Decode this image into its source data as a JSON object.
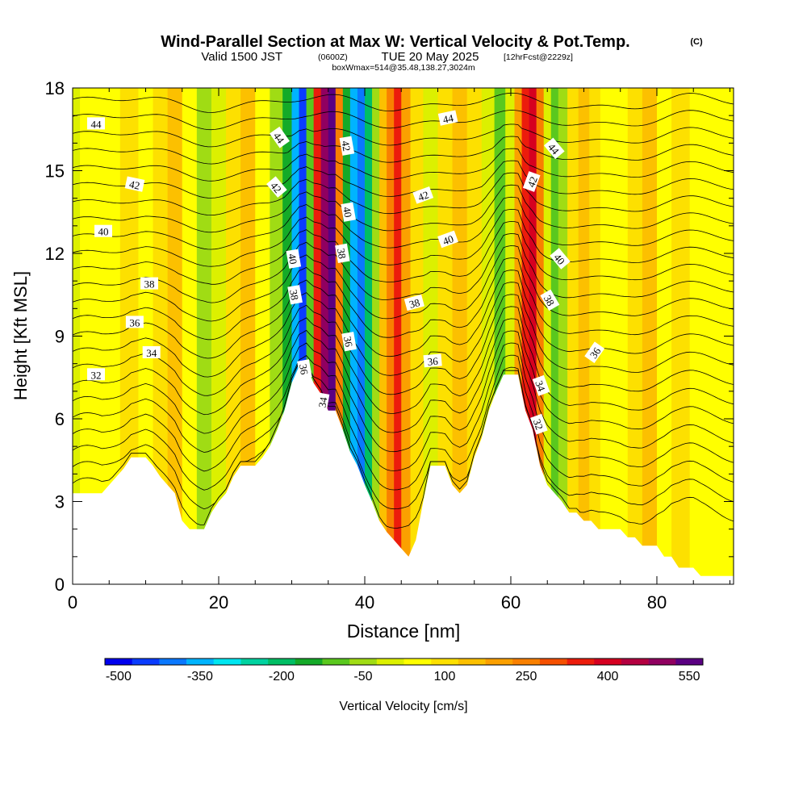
{
  "header": {
    "title": "Wind-Parallel Section at Max W: Vertical Velocity & Pot.Temp.",
    "copyright": "(C)",
    "valid_prefix": "Valid 1500 JST",
    "valid_zulu": "(0600Z)",
    "valid_date": "TUE 20 May 2025",
    "forecast": "[12hrFcst@2229z]",
    "box_info": "boxWmax=514@35.48,138.27,3024m"
  },
  "chart_data": {
    "type": "heatmap",
    "xlabel": "Distance [nm]",
    "ylabel": "Height [Kft MSL]",
    "xlim": [
      0,
      90.5
    ],
    "ylim": [
      0,
      18
    ],
    "x_ticks": [
      0,
      20,
      40,
      60,
      80
    ],
    "y_ticks": [
      0,
      3,
      6,
      9,
      12,
      15,
      18
    ],
    "field": "Vertical Velocity",
    "w_columns": [
      {
        "x": 0,
        "w": -60
      },
      {
        "x": 2,
        "w": 0
      },
      {
        "x": 5,
        "w": 20
      },
      {
        "x": 8,
        "w": 40
      },
      {
        "x": 10,
        "w": -20
      },
      {
        "x": 12,
        "w": 40
      },
      {
        "x": 14,
        "w": 120
      },
      {
        "x": 16,
        "w": 10
      },
      {
        "x": 18,
        "w": -80
      },
      {
        "x": 20,
        "w": -40
      },
      {
        "x": 22,
        "w": 40
      },
      {
        "x": 24,
        "w": 110
      },
      {
        "x": 26,
        "w": 0
      },
      {
        "x": 28,
        "w": -110
      },
      {
        "x": 29.5,
        "w": -220
      },
      {
        "x": 30.5,
        "w": -380
      },
      {
        "x": 31.5,
        "w": -480
      },
      {
        "x": 32.5,
        "w": -150
      },
      {
        "x": 33.5,
        "w": 300
      },
      {
        "x": 34.5,
        "w": 450
      },
      {
        "x": 35.5,
        "w": 514
      },
      {
        "x": 36.5,
        "w": 200
      },
      {
        "x": 37.5,
        "w": -200
      },
      {
        "x": 38.5,
        "w": -420
      },
      {
        "x": 39.5,
        "w": -460
      },
      {
        "x": 40.5,
        "w": -250
      },
      {
        "x": 41.5,
        "w": -80
      },
      {
        "x": 42.5,
        "w": 80
      },
      {
        "x": 43.5,
        "w": 220
      },
      {
        "x": 44.5,
        "w": 280
      },
      {
        "x": 45.5,
        "w": 160
      },
      {
        "x": 47,
        "w": 40
      },
      {
        "x": 49,
        "w": -60
      },
      {
        "x": 51,
        "w": 30
      },
      {
        "x": 53,
        "w": 120
      },
      {
        "x": 55,
        "w": 60
      },
      {
        "x": 57,
        "w": -60
      },
      {
        "x": 58.5,
        "w": -150
      },
      {
        "x": 60,
        "w": -60
      },
      {
        "x": 61,
        "w": 150
      },
      {
        "x": 62,
        "w": 290
      },
      {
        "x": 63,
        "w": 330
      },
      {
        "x": 64,
        "w": 180
      },
      {
        "x": 65,
        "w": -40
      },
      {
        "x": 66,
        "w": -170
      },
      {
        "x": 67,
        "w": -110
      },
      {
        "x": 68.5,
        "w": 30
      },
      {
        "x": 70,
        "w": 100
      },
      {
        "x": 71.5,
        "w": 60
      },
      {
        "x": 73,
        "w": 10
      },
      {
        "x": 75,
        "w": -20
      },
      {
        "x": 77,
        "w": 40
      },
      {
        "x": 79,
        "w": 80
      },
      {
        "x": 81,
        "w": 20
      },
      {
        "x": 83,
        "w": 50
      },
      {
        "x": 86,
        "w": 20
      },
      {
        "x": 90.5,
        "w": 10
      }
    ],
    "terrain": [
      [
        0,
        3.3
      ],
      [
        4,
        3.3
      ],
      [
        5,
        3.6
      ],
      [
        6,
        3.9
      ],
      [
        7,
        4.2
      ],
      [
        8,
        4.6
      ],
      [
        10,
        4.6
      ],
      [
        11,
        4.3
      ],
      [
        12,
        3.9
      ],
      [
        13,
        3.6
      ],
      [
        14,
        3.3
      ],
      [
        15,
        2.3
      ],
      [
        16,
        2.0
      ],
      [
        17,
        2.0
      ],
      [
        18,
        2.0
      ],
      [
        19,
        2.6
      ],
      [
        20,
        3.0
      ],
      [
        21,
        3.3
      ],
      [
        22,
        3.9
      ],
      [
        23,
        4.3
      ],
      [
        25,
        4.3
      ],
      [
        26,
        4.6
      ],
      [
        27,
        5.0
      ],
      [
        28,
        5.6
      ],
      [
        29,
        6.3
      ],
      [
        30,
        7.3
      ],
      [
        31,
        7.9
      ],
      [
        32,
        7.9
      ],
      [
        33,
        7.3
      ],
      [
        34,
        6.9
      ],
      [
        35,
        6.3
      ],
      [
        36,
        6.3
      ],
      [
        37,
        5.6
      ],
      [
        38,
        4.8
      ],
      [
        39,
        4.3
      ],
      [
        40,
        3.6
      ],
      [
        41,
        3.0
      ],
      [
        42,
        2.3
      ],
      [
        43,
        1.9
      ],
      [
        44,
        1.6
      ],
      [
        45,
        1.3
      ],
      [
        46,
        1.0
      ],
      [
        47,
        1.6
      ],
      [
        48,
        3.0
      ],
      [
        49,
        4.3
      ],
      [
        51,
        4.3
      ],
      [
        52,
        3.6
      ],
      [
        53,
        3.3
      ],
      [
        54,
        3.6
      ],
      [
        55,
        4.6
      ],
      [
        56,
        5.3
      ],
      [
        57,
        6.3
      ],
      [
        58,
        7.0
      ],
      [
        59,
        7.6
      ],
      [
        61,
        7.6
      ],
      [
        62,
        6.3
      ],
      [
        63,
        5.6
      ],
      [
        64,
        4.3
      ],
      [
        65,
        3.6
      ],
      [
        66,
        3.3
      ],
      [
        67,
        3.0
      ],
      [
        68,
        2.6
      ],
      [
        69,
        2.6
      ],
      [
        70,
        2.3
      ],
      [
        71,
        2.3
      ],
      [
        72,
        2.0
      ],
      [
        75,
        2.0
      ],
      [
        76,
        1.7
      ],
      [
        77,
        1.7
      ],
      [
        78,
        1.4
      ],
      [
        80,
        1.4
      ],
      [
        81,
        1.0
      ],
      [
        82,
        1.0
      ],
      [
        83,
        0.6
      ],
      [
        85,
        0.6
      ],
      [
        86,
        0.3
      ],
      [
        90.5,
        0.3
      ]
    ],
    "isentropes_K_label": "Pot.Temp.",
    "isentrope_labels": [
      {
        "x": 3.2,
        "y": 16.7,
        "text": "44",
        "rot": 0
      },
      {
        "x": 8.5,
        "y": 14.5,
        "text": "42",
        "rot": 12
      },
      {
        "x": 4.2,
        "y": 12.8,
        "text": "40",
        "rot": 0
      },
      {
        "x": 10.5,
        "y": 10.9,
        "text": "38",
        "rot": 0
      },
      {
        "x": 8.5,
        "y": 9.5,
        "text": "36",
        "rot": 0
      },
      {
        "x": 10.8,
        "y": 8.4,
        "text": "34",
        "rot": 0
      },
      {
        "x": 3.2,
        "y": 7.6,
        "text": "32",
        "rot": 0
      },
      {
        "x": 28.3,
        "y": 16.2,
        "text": "44",
        "rot": 55
      },
      {
        "x": 27.9,
        "y": 14.4,
        "text": "42",
        "rot": 50
      },
      {
        "x": 30.2,
        "y": 11.8,
        "text": "40",
        "rot": 80
      },
      {
        "x": 30.4,
        "y": 10.5,
        "text": "38",
        "rot": 80
      },
      {
        "x": 31.7,
        "y": 7.8,
        "text": "36",
        "rot": 80
      },
      {
        "x": 34.2,
        "y": 6.6,
        "text": "34",
        "rot": -80
      },
      {
        "x": 37.5,
        "y": 15.9,
        "text": "42",
        "rot": 80
      },
      {
        "x": 37.7,
        "y": 13.5,
        "text": "40",
        "rot": 80
      },
      {
        "x": 36.9,
        "y": 12.0,
        "text": "38",
        "rot": 80
      },
      {
        "x": 37.8,
        "y": 8.8,
        "text": "36",
        "rot": 80
      },
      {
        "x": 51.4,
        "y": 16.9,
        "text": "44",
        "rot": -12
      },
      {
        "x": 48.0,
        "y": 14.1,
        "text": "42",
        "rot": -20
      },
      {
        "x": 51.4,
        "y": 12.5,
        "text": "40",
        "rot": -20
      },
      {
        "x": 46.8,
        "y": 10.2,
        "text": "38",
        "rot": -15
      },
      {
        "x": 49.3,
        "y": 8.1,
        "text": "36",
        "rot": -5
      },
      {
        "x": 65.9,
        "y": 15.8,
        "text": "44",
        "rot": 50
      },
      {
        "x": 62.9,
        "y": 14.6,
        "text": "42",
        "rot": -70
      },
      {
        "x": 66.7,
        "y": 11.8,
        "text": "40",
        "rot": 50
      },
      {
        "x": 65.3,
        "y": 10.3,
        "text": "38",
        "rot": 60
      },
      {
        "x": 71.5,
        "y": 8.4,
        "text": "36",
        "rot": -55
      },
      {
        "x": 64.1,
        "y": 7.2,
        "text": "34",
        "rot": 70
      },
      {
        "x": 63.8,
        "y": 5.8,
        "text": "32",
        "rot": 70
      }
    ]
  },
  "colorbar": {
    "title": "Vertical Velocity [cm/s]",
    "tick_labels": [
      "-500",
      "-350",
      "-200",
      "-50",
      "100",
      "250",
      "400",
      "550"
    ],
    "colors": [
      "#0000ee",
      "#0a3cff",
      "#0a78ff",
      "#00b4ff",
      "#00e6f0",
      "#00d2a0",
      "#00be64",
      "#14aa28",
      "#5ac81e",
      "#a0dc14",
      "#dcf000",
      "#ffff00",
      "#fde000",
      "#fcc000",
      "#fba000",
      "#f98000",
      "#f55000",
      "#ec1c0c",
      "#d60020",
      "#b40040",
      "#900060",
      "#5a0082"
    ]
  }
}
